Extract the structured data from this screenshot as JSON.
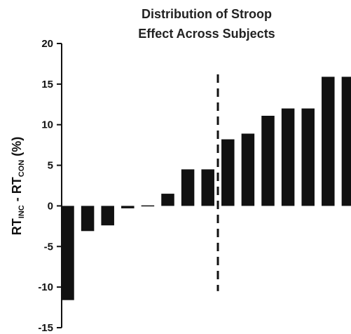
{
  "chart_data": {
    "type": "bar",
    "title_line1": "Distribution of Stroop",
    "title_line2": "Effect Across Subjects",
    "ylabel": {
      "part1": "RT",
      "sub1": "INC",
      "mid": " - RT",
      "sub2": "CON",
      "end": " (%)"
    },
    "xlabel": "",
    "ylim": [
      -15,
      20
    ],
    "yticks": [
      20,
      15,
      10,
      5,
      0,
      -5,
      -10,
      -15
    ],
    "ytick_labels": [
      "20",
      "15",
      "10",
      "5",
      "0",
      "-5",
      "-10",
      "-15"
    ],
    "values": [
      -11.6,
      -3.1,
      -2.4,
      -0.3,
      0.1,
      1.5,
      4.5,
      4.5,
      8.2,
      8.9,
      11.1,
      12.0,
      12.0,
      15.9,
      15.9
    ],
    "reference_line": {
      "style": "dashed",
      "between_bar_index": [
        7,
        8
      ],
      "y_range": [
        -10.5,
        16.2
      ]
    },
    "grid": false,
    "bar_color": "#111111"
  }
}
